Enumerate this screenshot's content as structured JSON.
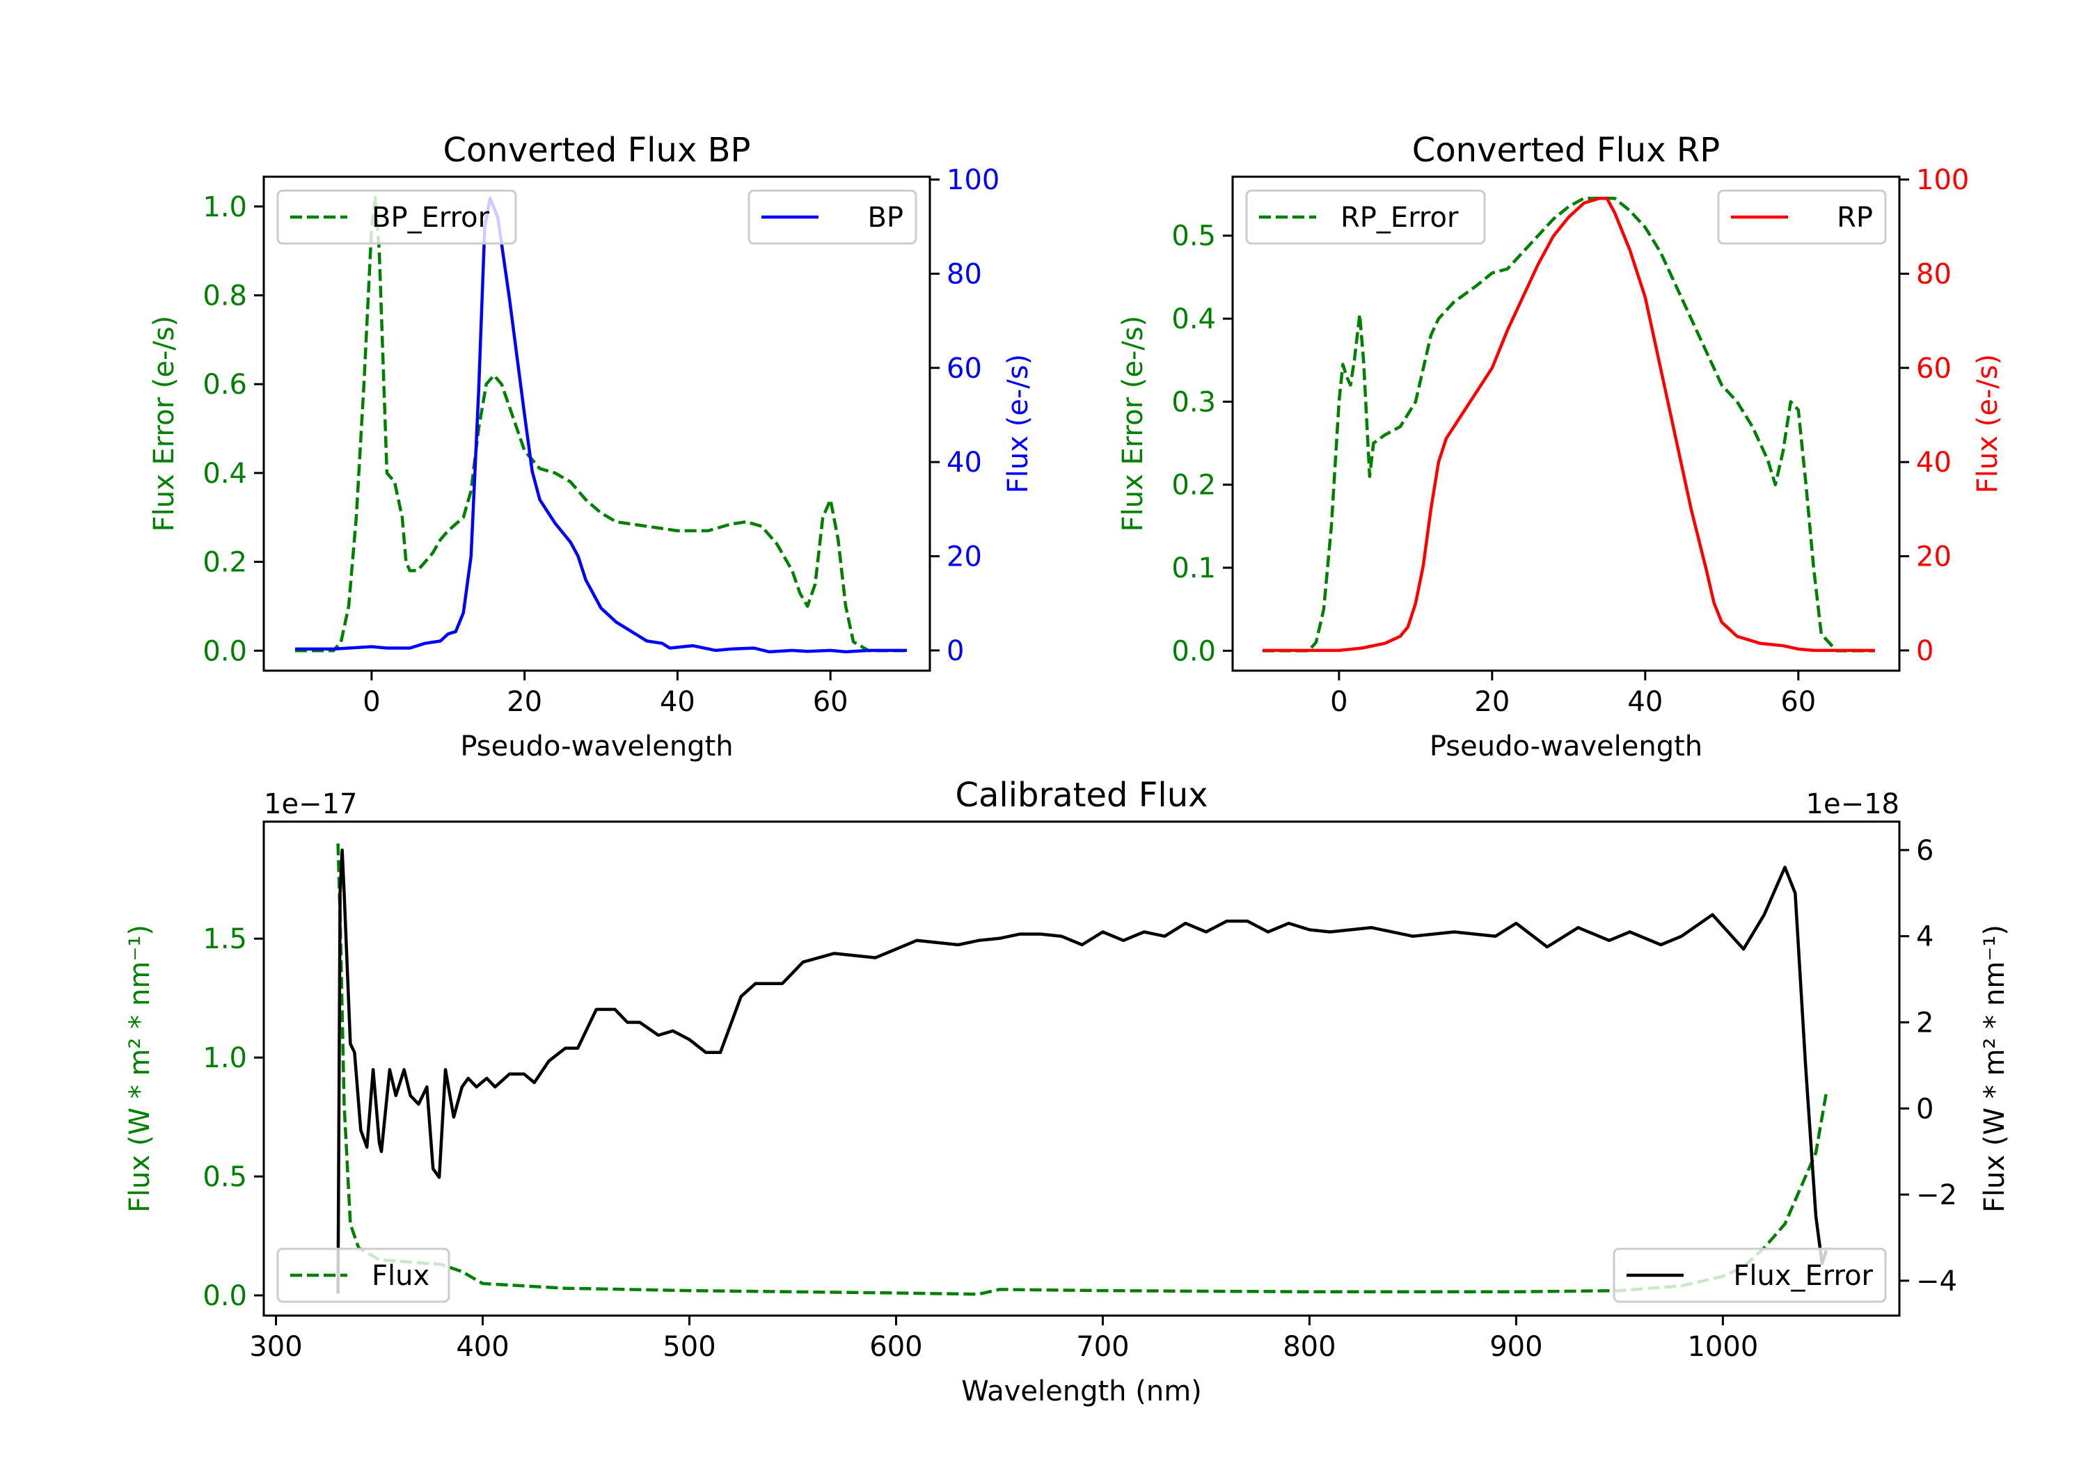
{
  "chart_data": [
    {
      "type": "line",
      "title": "Converted Flux BP",
      "xlabel": "Pseudo-wavelength",
      "ylabel_left": "Flux Error (e-/s)",
      "ylabel_right": "Flux (e-/s)",
      "xlim": [
        -14.1,
        73.0
      ],
      "ylim_left": [
        -0.045,
        1.067
      ],
      "ylim_right": [
        -4.3,
        100.6
      ],
      "xticks": [
        0,
        20,
        40,
        60
      ],
      "yticks_left": [
        0.0,
        0.2,
        0.4,
        0.6,
        0.8,
        1.0
      ],
      "yticks_right": [
        0,
        20,
        40,
        60,
        80,
        100
      ],
      "left_color": "#008000",
      "right_color": "#0000ff",
      "legend_left": {
        "label": "BP_Error",
        "placement": "upper-left"
      },
      "legend_right": {
        "label": "BP",
        "placement": "upper-right"
      },
      "series": [
        {
          "name": "BP_Error",
          "axis": "left",
          "color": "#008000",
          "style": "dashed",
          "x": [
            -10,
            -5,
            -4,
            -3,
            -2,
            -1,
            0,
            0.5,
            1,
            2,
            3,
            4,
            4.5,
            5,
            6,
            7,
            8,
            9,
            10,
            12,
            13,
            14,
            15,
            16,
            17,
            18,
            20,
            22,
            24,
            26,
            28,
            30,
            32,
            36,
            40,
            44,
            47,
            49,
            51,
            53,
            55,
            56,
            57,
            58,
            59,
            60,
            61,
            62,
            63,
            65,
            70
          ],
          "y": [
            0,
            0,
            0.02,
            0.1,
            0.3,
            0.6,
            0.95,
            1.02,
            0.9,
            0.4,
            0.38,
            0.3,
            0.2,
            0.18,
            0.18,
            0.2,
            0.22,
            0.25,
            0.27,
            0.3,
            0.36,
            0.5,
            0.6,
            0.62,
            0.6,
            0.55,
            0.45,
            0.41,
            0.4,
            0.38,
            0.34,
            0.31,
            0.29,
            0.28,
            0.27,
            0.27,
            0.285,
            0.29,
            0.28,
            0.24,
            0.18,
            0.13,
            0.1,
            0.15,
            0.3,
            0.34,
            0.25,
            0.1,
            0.02,
            0,
            0
          ]
        },
        {
          "name": "BP",
          "axis": "right",
          "color": "#0000ff",
          "style": "solid",
          "x": [
            -10,
            -5,
            0,
            2,
            5,
            7,
            9,
            10,
            11,
            12,
            13,
            14,
            14.8,
            15.5,
            16.5,
            18,
            20,
            21,
            22,
            24,
            26,
            27,
            28,
            30,
            32,
            34,
            36,
            38,
            39,
            42,
            45,
            47,
            50,
            52,
            55,
            57,
            60,
            62,
            65,
            70
          ],
          "y": [
            0.3,
            0.3,
            0.8,
            0.5,
            0.5,
            1.5,
            2,
            3.5,
            4,
            8,
            20,
            55,
            90,
            96,
            92,
            75,
            50,
            38,
            32,
            27,
            23,
            20,
            15,
            9,
            6,
            4,
            2,
            1.5,
            0.5,
            1,
            0,
            0.3,
            0.5,
            -0.3,
            0,
            -0.2,
            0,
            -0.3,
            0,
            0
          ]
        }
      ]
    },
    {
      "type": "line",
      "title": "Converted Flux RP",
      "xlabel": "Pseudo-wavelength",
      "ylabel_left": "Flux Error (e-/s)",
      "ylabel_right": "Flux (e-/s)",
      "xlim": [
        -13.9,
        73.2
      ],
      "ylim_left": [
        -0.024,
        0.571
      ],
      "ylim_right": [
        -4.3,
        100.6
      ],
      "xticks": [
        0,
        20,
        40,
        60
      ],
      "yticks_left": [
        0.0,
        0.1,
        0.2,
        0.3,
        0.4,
        0.5
      ],
      "yticks_right": [
        0,
        20,
        40,
        60,
        80,
        100
      ],
      "left_color": "#008000",
      "right_color": "#ff0000",
      "legend_left": {
        "label": "RP_Error",
        "placement": "upper-left"
      },
      "legend_right": {
        "label": "RP",
        "placement": "upper-right"
      },
      "series": [
        {
          "name": "RP_Error",
          "axis": "left",
          "color": "#008000",
          "style": "dashed",
          "x": [
            -10,
            -4,
            -3,
            -2,
            -1,
            0,
            0.5,
            1,
            1.5,
            2,
            2.7,
            3.2,
            4,
            4.5,
            6,
            8,
            10,
            12,
            13,
            15,
            18,
            20,
            22,
            24,
            26,
            28,
            30,
            32,
            34,
            36,
            38,
            40,
            42,
            44,
            46,
            48,
            50,
            52,
            54,
            56,
            57,
            58,
            59,
            60,
            61,
            62,
            63,
            65,
            70
          ],
          "y": [
            0,
            0,
            0.01,
            0.05,
            0.15,
            0.3,
            0.345,
            0.33,
            0.32,
            0.35,
            0.405,
            0.35,
            0.21,
            0.25,
            0.26,
            0.27,
            0.3,
            0.38,
            0.4,
            0.42,
            0.44,
            0.455,
            0.46,
            0.48,
            0.5,
            0.52,
            0.535,
            0.545,
            0.545,
            0.545,
            0.53,
            0.51,
            0.48,
            0.44,
            0.4,
            0.36,
            0.32,
            0.3,
            0.27,
            0.23,
            0.2,
            0.24,
            0.3,
            0.29,
            0.2,
            0.1,
            0.02,
            0,
            0
          ]
        },
        {
          "name": "RP",
          "axis": "right",
          "color": "#ff0000",
          "style": "solid",
          "x": [
            -10,
            0,
            3,
            6,
            8,
            9,
            10,
            11,
            12,
            13,
            14,
            16,
            18,
            20,
            22,
            24,
            26,
            28,
            30,
            32,
            34,
            35,
            36,
            38,
            40,
            42,
            44,
            46,
            48,
            49,
            50,
            52,
            55,
            58,
            60,
            62,
            70
          ],
          "y": [
            0,
            0,
            0.5,
            1.5,
            3,
            5,
            10,
            18,
            30,
            40,
            45,
            50,
            55,
            60,
            68,
            75,
            82,
            88,
            92,
            95,
            96,
            96,
            93,
            85,
            75,
            60,
            45,
            30,
            17,
            10,
            6,
            3,
            1.5,
            1,
            0.3,
            0,
            0
          ]
        }
      ]
    },
    {
      "type": "line",
      "title": "Calibrated Flux",
      "xlabel": "Wavelength (nm)",
      "ylabel_left": "Flux (W * m² * nm⁻¹)",
      "ylabel_right": "Flux (W * m² * nm⁻¹)",
      "offset_left": "1e−17",
      "offset_right": "1e−18",
      "xlim": [
        294.1,
        1085.4
      ],
      "ylim_left": [
        -0.085,
        1.992
      ],
      "ylim_right": [
        -4.81,
        6.66
      ],
      "xticks": [
        300,
        400,
        500,
        600,
        700,
        800,
        900,
        1000
      ],
      "yticks_left": [
        0.0,
        0.5,
        1.0,
        1.5
      ],
      "yticks_right": [
        -4,
        -2,
        0,
        2,
        4,
        6
      ],
      "left_color": "#008000",
      "right_color": "#000000",
      "legend_left": {
        "label": "Flux",
        "placement": "lower-left"
      },
      "legend_right": {
        "label": "Flux_Error",
        "placement": "lower-right"
      },
      "series": [
        {
          "name": "Flux_Error",
          "axis": "left",
          "color": "#008000",
          "style": "dashed",
          "x": [
            330,
            331,
            333,
            336,
            340,
            350,
            380,
            390,
            400,
            420,
            440,
            500,
            600,
            640,
            650,
            700,
            800,
            900,
            950,
            980,
            1000,
            1010,
            1020,
            1030,
            1040,
            1045,
            1050
          ],
          "y": [
            1.9,
            1.6,
            0.8,
            0.3,
            0.2,
            0.15,
            0.13,
            0.1,
            0.05,
            0.04,
            0.03,
            0.02,
            0.01,
            0.005,
            0.025,
            0.02,
            0.015,
            0.015,
            0.02,
            0.04,
            0.08,
            0.12,
            0.2,
            0.3,
            0.5,
            0.6,
            0.85
          ]
        },
        {
          "name": "Flux",
          "axis": "right",
          "color": "#000000",
          "style": "solid",
          "x": [
            330,
            331,
            332,
            333,
            336,
            338,
            341,
            344,
            347,
            350,
            351,
            355,
            358,
            362,
            365,
            369,
            373,
            376,
            379,
            382,
            386,
            390,
            393,
            397,
            402,
            406,
            413,
            420,
            425,
            432,
            440,
            446,
            455,
            464,
            470,
            476,
            485,
            492,
            500,
            508,
            515,
            525,
            532,
            545,
            555,
            570,
            590,
            600,
            610,
            630,
            640,
            650,
            660,
            670,
            680,
            690,
            700,
            710,
            720,
            730,
            740,
            750,
            760,
            770,
            780,
            790,
            800,
            810,
            830,
            850,
            870,
            890,
            900,
            915,
            930,
            945,
            955,
            970,
            980,
            995,
            1010,
            1020,
            1030,
            1035,
            1040,
            1045,
            1048,
            1050
          ],
          "y": [
            -4.3,
            5,
            6,
            5,
            1.5,
            1.3,
            -0.5,
            -0.9,
            0.9,
            -0.8,
            -1.0,
            0.9,
            0.3,
            0.9,
            0.3,
            0.1,
            0.5,
            -1.4,
            -1.6,
            0.9,
            -0.2,
            0.5,
            0.7,
            0.5,
            0.7,
            0.5,
            0.8,
            0.8,
            0.6,
            1.1,
            1.4,
            1.4,
            2.3,
            2.3,
            2.0,
            2.0,
            1.7,
            1.8,
            1.6,
            1.3,
            1.3,
            2.6,
            2.9,
            2.9,
            3.4,
            3.6,
            3.5,
            3.7,
            3.9,
            3.8,
            3.9,
            3.95,
            4.05,
            4.05,
            4.0,
            3.8,
            4.1,
            3.9,
            4.1,
            4.0,
            4.3,
            4.1,
            4.35,
            4.35,
            4.1,
            4.3,
            4.15,
            4.1,
            4.2,
            4.0,
            4.1,
            4.0,
            4.3,
            3.75,
            4.2,
            3.9,
            4.1,
            3.8,
            4.0,
            4.5,
            3.7,
            4.5,
            5.6,
            5.0,
            1.0,
            -2.5,
            -3.6,
            -3.3
          ]
        }
      ]
    }
  ]
}
